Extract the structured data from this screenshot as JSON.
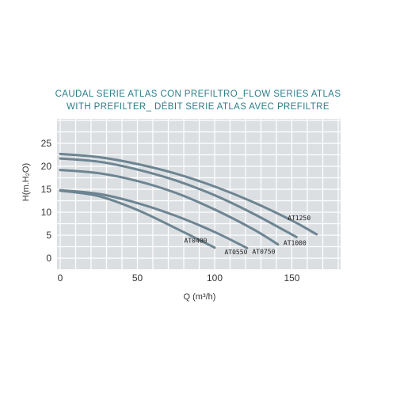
{
  "chart_data": {
    "type": "line",
    "title_lines": [
      "CAUDAL SERIE ATLAS CON PREFILTRO_FLOW SERIES ATLAS",
      "WITH PREFILTER_ DÉBIT SERIE ATLAS AVEC PREFILTRE"
    ],
    "xlabel": "Q (m³/h)",
    "ylabel": "H(m.H₂O)",
    "xlim": [
      0,
      180
    ],
    "ylim": [
      0,
      25
    ],
    "x_ticks": [
      0,
      50,
      100,
      150
    ],
    "y_ticks": [
      0,
      5,
      10,
      15,
      20,
      25
    ],
    "grid": true,
    "series": [
      {
        "name": "AT0400",
        "x": [
          0,
          25,
          50,
          75,
          100
        ],
        "y": [
          14.7,
          13.5,
          10.5,
          6.5,
          2.3
        ]
      },
      {
        "name": "AT0550",
        "x": [
          0,
          25,
          50,
          75,
          100,
          121
        ],
        "y": [
          14.8,
          14.0,
          12.0,
          9.2,
          5.7,
          2.2
        ]
      },
      {
        "name": "AT0750",
        "x": [
          0,
          25,
          50,
          75,
          100,
          125,
          141
        ],
        "y": [
          19.2,
          18.5,
          16.8,
          14.2,
          10.6,
          6.3,
          3.0
        ]
      },
      {
        "name": "AT1000",
        "x": [
          0,
          25,
          50,
          75,
          100,
          125,
          153
        ],
        "y": [
          21.7,
          21.0,
          19.3,
          16.9,
          13.7,
          9.7,
          4.6
        ]
      },
      {
        "name": "AT1250",
        "x": [
          0,
          25,
          50,
          75,
          100,
          125,
          150,
          166
        ],
        "y": [
          22.7,
          22.0,
          20.5,
          18.4,
          15.6,
          12.2,
          8.2,
          5.2
        ]
      }
    ],
    "colors": {
      "curve": "#6d8593",
      "grid_bg": "#dcdfe2",
      "grid_line": "#ffffff",
      "title": "#2a7f8a"
    }
  }
}
